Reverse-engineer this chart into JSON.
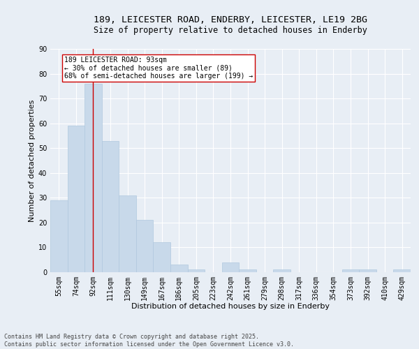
{
  "title1": "189, LEICESTER ROAD, ENDERBY, LEICESTER, LE19 2BG",
  "title2": "Size of property relative to detached houses in Enderby",
  "xlabel": "Distribution of detached houses by size in Enderby",
  "ylabel": "Number of detached properties",
  "categories": [
    "55sqm",
    "74sqm",
    "92sqm",
    "111sqm",
    "130sqm",
    "149sqm",
    "167sqm",
    "186sqm",
    "205sqm",
    "223sqm",
    "242sqm",
    "261sqm",
    "279sqm",
    "298sqm",
    "317sqm",
    "336sqm",
    "354sqm",
    "373sqm",
    "392sqm",
    "410sqm",
    "429sqm"
  ],
  "values": [
    29,
    59,
    76,
    53,
    31,
    21,
    12,
    3,
    1,
    0,
    4,
    1,
    0,
    1,
    0,
    0,
    0,
    1,
    1,
    0,
    1
  ],
  "bar_color": "#c8d9ea",
  "bar_edge_color": "#b0c8de",
  "vline_color": "#cc0000",
  "annotation_text": "189 LEICESTER ROAD: 93sqm\n← 30% of detached houses are smaller (89)\n68% of semi-detached houses are larger (199) →",
  "annotation_box_color": "#ffffff",
  "annotation_box_edge": "#cc0000",
  "footer": "Contains HM Land Registry data © Crown copyright and database right 2025.\nContains public sector information licensed under the Open Government Licence v3.0.",
  "bg_color": "#e8eef5",
  "plot_bg_color": "#e8eef5",
  "ylim": [
    0,
    90
  ],
  "yticks": [
    0,
    10,
    20,
    30,
    40,
    50,
    60,
    70,
    80,
    90
  ],
  "grid_color": "#ffffff",
  "title_fontsize": 9.5,
  "subtitle_fontsize": 8.5,
  "axis_label_fontsize": 8,
  "tick_fontsize": 7,
  "footer_fontsize": 6,
  "annotation_fontsize": 7
}
